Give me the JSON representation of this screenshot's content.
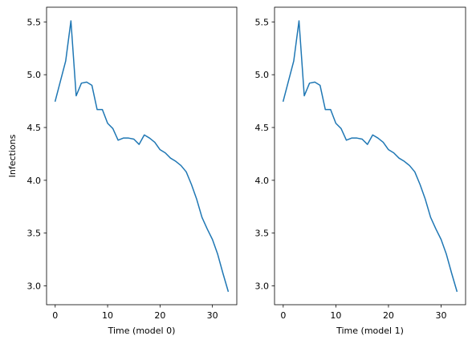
{
  "chart_data": [
    {
      "type": "line",
      "xlabel": "Time (model 0)",
      "ylabel": "Infections",
      "xlim": [
        -1.65,
        34.65
      ],
      "ylim": [
        2.822,
        5.639
      ],
      "xticks": [
        0,
        10,
        20,
        30
      ],
      "yticks": [
        3.0,
        3.5,
        4.0,
        4.5,
        5.0,
        5.5
      ],
      "grid": false,
      "color": "#1f77b4",
      "x": [
        0,
        1,
        2,
        3,
        4,
        5,
        6,
        7,
        8,
        9,
        10,
        11,
        12,
        13,
        14,
        15,
        16,
        17,
        18,
        19,
        20,
        21,
        22,
        23,
        24,
        25,
        26,
        27,
        28,
        29,
        30,
        31,
        32,
        33
      ],
      "series": [
        {
          "values": [
            4.75,
            4.94,
            5.13,
            5.51,
            4.8,
            4.92,
            4.93,
            4.9,
            4.67,
            4.67,
            4.54,
            4.49,
            4.38,
            4.4,
            4.4,
            4.39,
            4.34,
            4.43,
            4.4,
            4.36,
            4.29,
            4.26,
            4.21,
            4.18,
            4.14,
            4.08,
            3.96,
            3.82,
            3.65,
            3.54,
            3.44,
            3.3,
            3.12,
            2.95
          ]
        }
      ]
    },
    {
      "type": "line",
      "xlabel": "Time (model 1)",
      "ylabel": "",
      "xlim": [
        -1.65,
        34.65
      ],
      "ylim": [
        2.822,
        5.639
      ],
      "xticks": [
        0,
        10,
        20,
        30
      ],
      "yticks": [
        3.0,
        3.5,
        4.0,
        4.5,
        5.0,
        5.5
      ],
      "grid": false,
      "color": "#1f77b4",
      "x": [
        0,
        1,
        2,
        3,
        4,
        5,
        6,
        7,
        8,
        9,
        10,
        11,
        12,
        13,
        14,
        15,
        16,
        17,
        18,
        19,
        20,
        21,
        22,
        23,
        24,
        25,
        26,
        27,
        28,
        29,
        30,
        31,
        32,
        33
      ],
      "series": [
        {
          "values": [
            4.75,
            4.94,
            5.13,
            5.51,
            4.8,
            4.92,
            4.93,
            4.9,
            4.67,
            4.67,
            4.54,
            4.49,
            4.38,
            4.4,
            4.4,
            4.39,
            4.34,
            4.43,
            4.4,
            4.36,
            4.29,
            4.26,
            4.21,
            4.18,
            4.14,
            4.08,
            3.96,
            3.82,
            3.65,
            3.54,
            3.44,
            3.3,
            3.12,
            2.95
          ]
        }
      ]
    }
  ]
}
